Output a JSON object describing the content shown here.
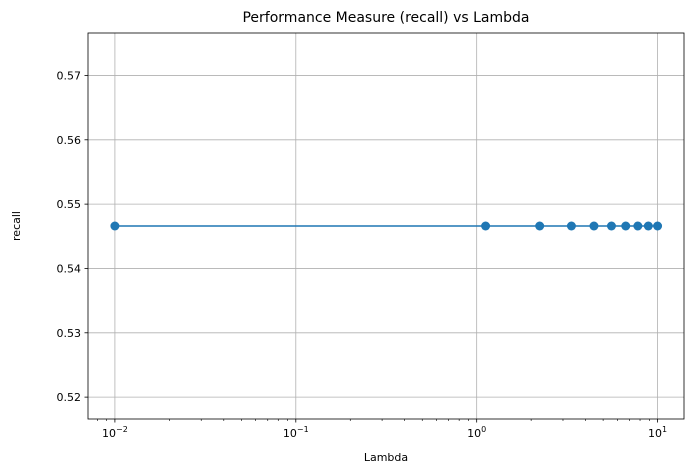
{
  "chart_data": {
    "type": "line",
    "title": "Performance Measure (recall) vs Lambda",
    "xlabel": "Lambda",
    "ylabel": "recall",
    "xscale": "log",
    "xlim": [
      0.0071,
      14.0
    ],
    "ylim": [
      0.5166,
      0.5766
    ],
    "grid": true,
    "line_color": "#1f77b4",
    "marker": "circle",
    "x_ticks": [
      {
        "value": 0.01,
        "base": "10",
        "exp": "−2"
      },
      {
        "value": 0.1,
        "base": "10",
        "exp": "−1"
      },
      {
        "value": 1,
        "base": "10",
        "exp": "0"
      },
      {
        "value": 10,
        "base": "10",
        "exp": "1"
      }
    ],
    "y_ticks": [
      0.52,
      0.53,
      0.54,
      0.55,
      0.56,
      0.57
    ],
    "y_tick_labels": [
      "0.52",
      "0.53",
      "0.54",
      "0.55",
      "0.56",
      "0.57"
    ],
    "series": [
      {
        "x": [
          0.01,
          1.12,
          2.23,
          3.34,
          4.45,
          5.56,
          6.67,
          7.78,
          8.89,
          10.0
        ],
        "y": [
          0.5466,
          0.5466,
          0.5466,
          0.5466,
          0.5466,
          0.5466,
          0.5466,
          0.5466,
          0.5466,
          0.5466
        ]
      }
    ]
  }
}
